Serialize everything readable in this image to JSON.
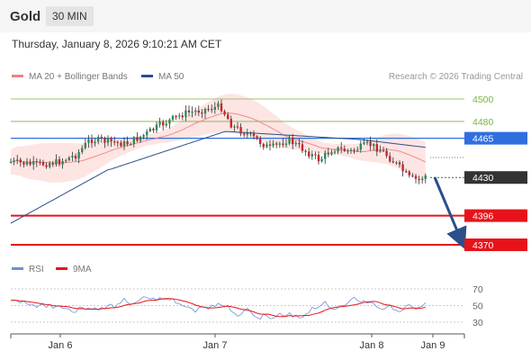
{
  "header": {
    "title": "Gold",
    "timeframe": "30 MIN"
  },
  "datetime": "Thursday, January 8, 2026 9:10:21 AM CET",
  "legend": {
    "ma20": {
      "label": "MA 20 + Bollinger Bands",
      "color": "#f28080"
    },
    "ma50": {
      "label": "MA 50",
      "color": "#2a4f8a"
    }
  },
  "credit": "Research © 2026 Trading Central",
  "levels": [
    {
      "price": "4500",
      "style": "resistance-target",
      "color": "#7cb342"
    },
    {
      "price": "4480",
      "style": "resistance-target",
      "color": "#7cb342"
    },
    {
      "price": "4465",
      "style": "pivot",
      "color": "#2f6fe0"
    },
    {
      "price": "4430",
      "style": "last-price",
      "color": "#333333"
    },
    {
      "price": "4396",
      "style": "support-target",
      "color": "#e8131a"
    },
    {
      "price": "4370",
      "style": "support-target",
      "color": "#e8131a"
    }
  ],
  "rsi_legend": {
    "rsi": {
      "label": "RSI",
      "color": "#6d8fd6"
    },
    "ma9": {
      "label": "9MA",
      "color": "#e8131a"
    }
  },
  "chart_data": {
    "type": "candlestick",
    "x_ticks": [
      "Jan 6",
      "Jan 7",
      "Jan 8",
      "Jan 9"
    ],
    "y_ticks": [
      4500,
      4480
    ],
    "rsi_ticks": [
      70,
      50,
      30
    ],
    "rsi_range": [
      0,
      100
    ],
    "last_price": 4430,
    "forecast": {
      "from": 4430,
      "to": 4370,
      "direction": "down"
    }
  }
}
